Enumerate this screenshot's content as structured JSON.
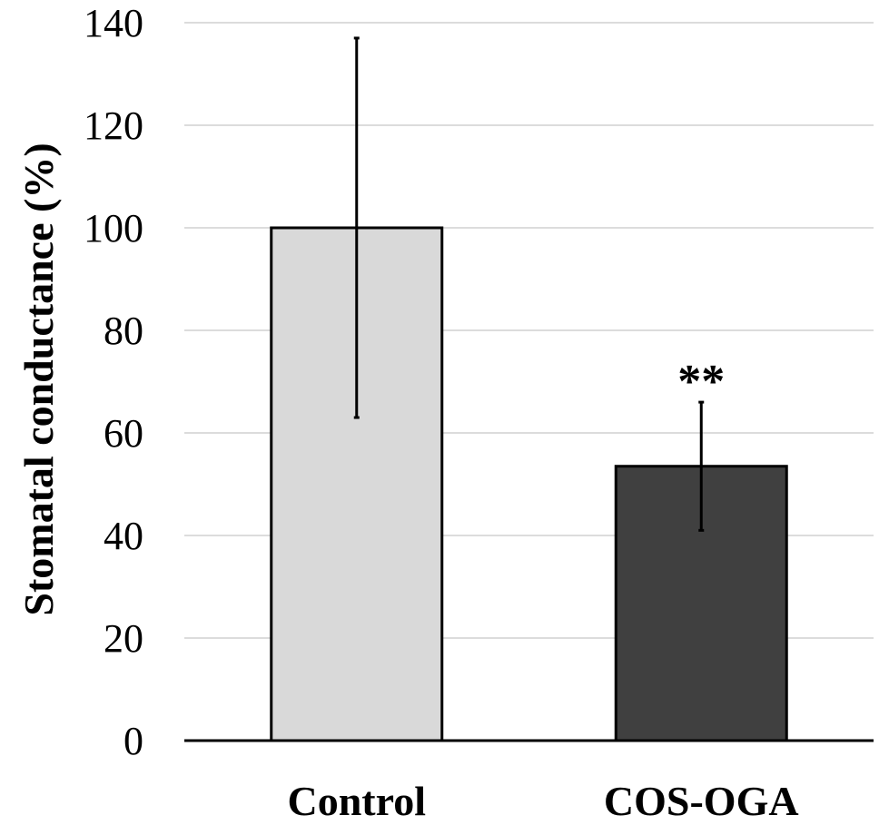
{
  "chart_data": {
    "type": "bar",
    "title": "",
    "xlabel": "",
    "ylabel": "Stomatal conductance (%)",
    "ylim": [
      0,
      140
    ],
    "yticks": [
      0,
      20,
      40,
      60,
      80,
      100,
      120,
      140
    ],
    "grid": true,
    "categories": [
      "Control",
      "COS-OGA"
    ],
    "values": [
      100,
      53.5
    ],
    "error": [
      37,
      12.5
    ],
    "annotations": [
      "",
      "**"
    ],
    "colors": [
      "#d9d9d9",
      "#404040"
    ]
  }
}
